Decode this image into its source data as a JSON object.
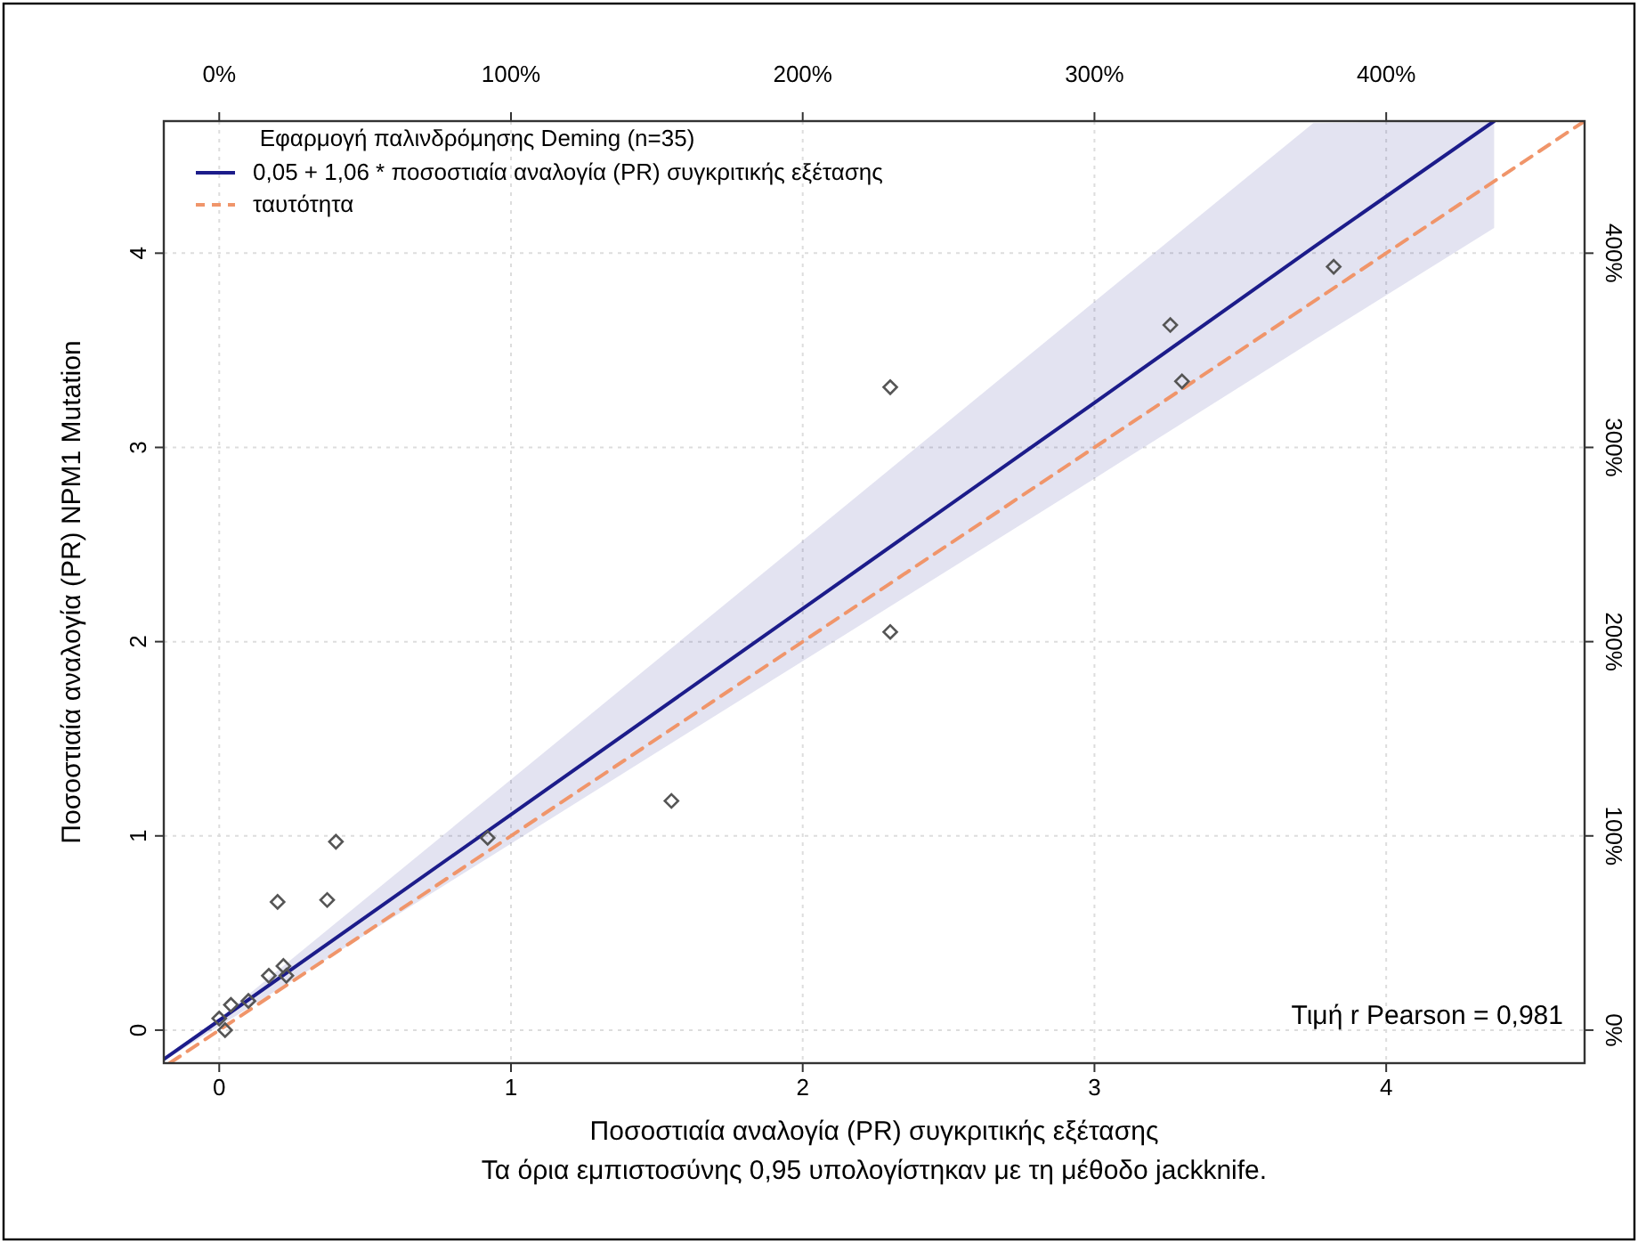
{
  "chart_data": {
    "type": "scatter",
    "xlabel": "Ποσοστιαία αναλογία (PR) συγκριτικής εξέτασης",
    "ylabel": "Ποσοστιαία αναλογία (PR) NPM1 Mutation",
    "legend_title": "Εφαρμογή παλινδρόμησης Deming (n=35)",
    "legend": "top left",
    "grid": true,
    "xlim": [
      -0.19,
      4.68
    ],
    "ylim": [
      -0.17,
      4.68
    ],
    "xticks": [
      0,
      1,
      2,
      3,
      4
    ],
    "yticks": [
      0,
      1,
      2,
      3,
      4
    ],
    "x2lim": [
      -19,
      468
    ],
    "x2ticks": [
      {
        "value": 0,
        "label": "0%"
      },
      {
        "value": 100,
        "label": "100%"
      },
      {
        "value": 200,
        "label": "200%"
      },
      {
        "value": 300,
        "label": "300%"
      },
      {
        "value": 400,
        "label": "400%"
      }
    ],
    "y2lim": [
      -17,
      468
    ],
    "y2ticks": [
      {
        "value": 0,
        "label": "0%"
      },
      {
        "value": 100,
        "label": "100%"
      },
      {
        "value": 200,
        "label": "200%"
      },
      {
        "value": 300,
        "label": "300%"
      },
      {
        "value": 400,
        "label": "400%"
      }
    ],
    "series": [
      {
        "type": "line",
        "name": "0,05 + 1,06 * ποσοστιαία αναλογία (PR) συγκριτικής εξέτασης",
        "color": "#1c1c8a",
        "line_style": "solid",
        "x": [
          -0.19,
          0,
          1,
          2,
          3,
          3.75,
          4.37
        ],
        "values": [
          -0.15,
          0.05,
          1.11,
          2.17,
          3.23,
          4.03,
          4.68
        ],
        "lower": [
          -0.16,
          0.02,
          0.96,
          1.9,
          2.84,
          3.55,
          4.13
        ],
        "upper": [
          -0.14,
          0.06,
          1.29,
          2.52,
          3.75,
          4.67,
          4.68
        ]
      },
      {
        "type": "line",
        "name": "ταυτότητα",
        "color": "#f0956a",
        "line_style": "dashed",
        "x": [
          -0.17,
          4.68
        ],
        "values": [
          -0.17,
          4.68
        ]
      },
      {
        "color": "#555555",
        "marker": "diamond",
        "x": [
          2.3,
          2.3,
          3.26,
          3.3,
          3.82,
          1.55,
          0.92,
          0.4,
          0.2,
          0.37,
          0.22,
          0.17,
          0.23,
          0.04,
          0.1,
          0,
          0.02
        ],
        "values": [
          3.31,
          2.05,
          3.63,
          3.34,
          3.93,
          1.18,
          0.99,
          0.97,
          0.66,
          0.67,
          0.33,
          0.28,
          0.28,
          0.13,
          0.15,
          0.06,
          0
        ]
      }
    ],
    "annotations": [
      "Τιμή r Pearson = 0,981",
      "Τα όρια εμπιστοσύνης 0,95 υπολογίστηκαν με τη μέθοδο jackknife."
    ]
  }
}
